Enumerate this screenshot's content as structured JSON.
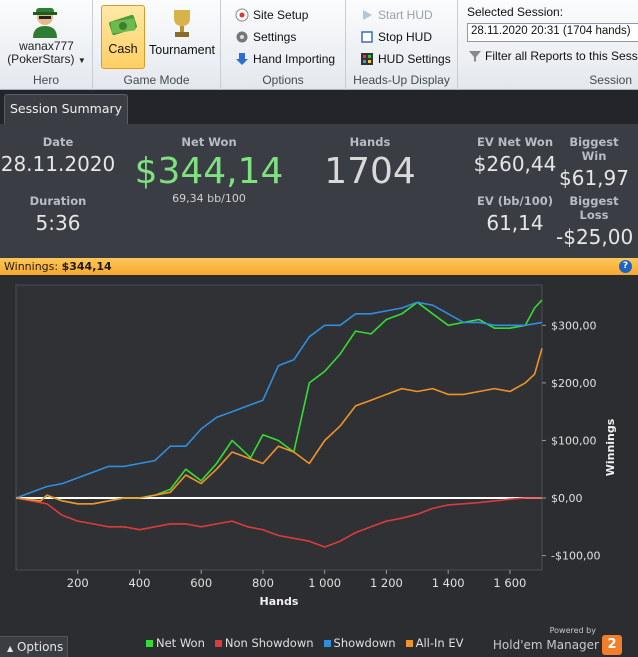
{
  "ribbon": {
    "hero": {
      "name": "wanax777",
      "site": "(PokerStars)",
      "label": "Hero"
    },
    "game_mode": {
      "cash": "Cash",
      "tournament": "Tournament",
      "label": "Game Mode"
    },
    "options": {
      "site_setup": "Site Setup",
      "settings": "Settings",
      "hand_importing": "Hand Importing",
      "label": "Options"
    },
    "hud": {
      "start": "Start HUD",
      "stop": "Stop HUD",
      "settings": "HUD Settings",
      "label": "Heads-Up Display"
    },
    "session": {
      "selected_label": "Selected Session:",
      "selected_value": "28.11.2020 20:31 (1704 hands)",
      "filter": "Filter all Reports to this Session",
      "label": "Session"
    }
  },
  "tab": {
    "label": "Session Summary"
  },
  "summary": {
    "date": {
      "label": "Date",
      "value": "28.11.2020"
    },
    "duration": {
      "label": "Duration",
      "value": "5:36"
    },
    "net_won": {
      "label": "Net Won",
      "value": "$344,14",
      "sub": "69,34 bb/100"
    },
    "hands": {
      "label": "Hands",
      "value": "1704"
    },
    "ev_net_won": {
      "label": "EV Net Won",
      "value": "$260,44"
    },
    "ev_bb": {
      "label": "EV (bb/100)",
      "value": "61,14"
    },
    "biggest_win": {
      "label": "Biggest Win",
      "value": "$61,97"
    },
    "biggest_loss": {
      "label": "Biggest Loss",
      "value": "-$25,00"
    }
  },
  "winnings_bar": {
    "label": "Winnings:",
    "value": "$344,14"
  },
  "options_button": "Options",
  "brand": {
    "powered": "Powered by",
    "name": "Hold'em Manager",
    "version": "2"
  },
  "colors": {
    "net_won": "#33dd33",
    "non_showdown": "#dd3b3b",
    "showdown": "#2f8ee0",
    "allin_ev": "#f0922a"
  },
  "chart_data": {
    "type": "line",
    "xlabel": "Hands",
    "ylabel": "Winnings",
    "xlim": [
      0,
      1704
    ],
    "ylim": [
      -125,
      370
    ],
    "xticks": [
      200,
      400,
      600,
      800,
      1000,
      1200,
      1400,
      1600
    ],
    "xtick_labels": [
      "200",
      "400",
      "600",
      "800",
      "1 000",
      "1 200",
      "1 400",
      "1 600"
    ],
    "yticks": [
      -100,
      0,
      100,
      200,
      300
    ],
    "ytick_labels": [
      "-$100,00",
      "$0,00",
      "$100,00",
      "$200,00",
      "$300,00"
    ],
    "legend_position": "bottom",
    "series": [
      {
        "name": "Net Won",
        "color": "#33dd33",
        "x": [
          0,
          80,
          100,
          150,
          200,
          250,
          300,
          350,
          400,
          450,
          500,
          550,
          600,
          650,
          700,
          720,
          760,
          800,
          850,
          900,
          950,
          1000,
          1050,
          1100,
          1150,
          1200,
          1250,
          1300,
          1350,
          1400,
          1450,
          1500,
          1550,
          1600,
          1650,
          1680,
          1704
        ],
        "y": [
          0,
          -5,
          5,
          -5,
          -10,
          -10,
          -5,
          0,
          0,
          5,
          15,
          50,
          30,
          60,
          100,
          90,
          70,
          110,
          100,
          80,
          200,
          220,
          250,
          290,
          285,
          310,
          320,
          340,
          320,
          300,
          305,
          310,
          295,
          295,
          300,
          330,
          344
        ]
      },
      {
        "name": "Non Showdown",
        "color": "#dd3b3b",
        "x": [
          0,
          100,
          150,
          200,
          250,
          300,
          350,
          400,
          450,
          500,
          550,
          600,
          650,
          700,
          750,
          800,
          850,
          900,
          950,
          1000,
          1050,
          1100,
          1150,
          1200,
          1250,
          1300,
          1350,
          1400,
          1450,
          1500,
          1550,
          1600,
          1650,
          1704
        ],
        "y": [
          0,
          -10,
          -30,
          -40,
          -45,
          -50,
          -50,
          -55,
          -50,
          -45,
          -45,
          -50,
          -45,
          -40,
          -50,
          -55,
          -65,
          -70,
          -75,
          -85,
          -75,
          -60,
          -50,
          -40,
          -35,
          -28,
          -18,
          -12,
          -10,
          -8,
          -5,
          -2,
          0,
          0
        ]
      },
      {
        "name": "Showdown",
        "color": "#2f8ee0",
        "x": [
          0,
          100,
          150,
          200,
          250,
          300,
          350,
          400,
          450,
          500,
          550,
          600,
          650,
          700,
          750,
          800,
          850,
          900,
          950,
          1000,
          1050,
          1100,
          1150,
          1200,
          1250,
          1300,
          1350,
          1400,
          1450,
          1500,
          1550,
          1600,
          1650,
          1704
        ],
        "y": [
          0,
          20,
          25,
          35,
          45,
          55,
          55,
          60,
          65,
          90,
          90,
          120,
          140,
          150,
          160,
          170,
          230,
          240,
          280,
          300,
          300,
          320,
          320,
          325,
          330,
          340,
          335,
          320,
          305,
          305,
          300,
          300,
          300,
          305
        ]
      },
      {
        "name": "All-In EV",
        "color": "#f0922a",
        "x": [
          0,
          80,
          100,
          150,
          200,
          250,
          300,
          350,
          400,
          450,
          500,
          550,
          600,
          650,
          700,
          750,
          800,
          850,
          900,
          950,
          1000,
          1050,
          1100,
          1150,
          1200,
          1250,
          1300,
          1350,
          1400,
          1450,
          1500,
          1550,
          1600,
          1650,
          1680,
          1704
        ],
        "y": [
          0,
          -5,
          5,
          -5,
          -10,
          -10,
          -5,
          0,
          0,
          5,
          10,
          40,
          25,
          50,
          80,
          70,
          60,
          90,
          80,
          60,
          100,
          125,
          160,
          170,
          180,
          190,
          185,
          190,
          180,
          180,
          185,
          190,
          185,
          200,
          215,
          260
        ]
      }
    ]
  }
}
